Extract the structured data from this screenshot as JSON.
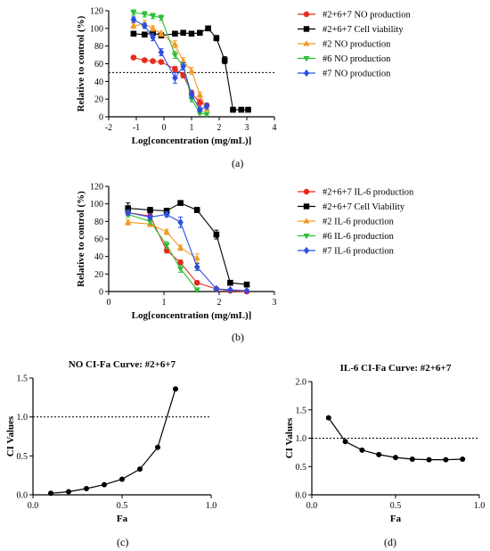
{
  "captions": [
    "(a)",
    "(b)",
    "(c)",
    "(d)"
  ],
  "chart_data": [
    {
      "type": "scatter",
      "panel": "a",
      "xlabel": "Log[concentration (mg/mL)]",
      "ylabel": "Relative to control (%)",
      "xlim": [
        -2,
        4
      ],
      "ylim": [
        0,
        120
      ],
      "xticks": [
        -2,
        -1,
        0,
        1,
        2,
        3,
        4
      ],
      "yticks": [
        0,
        20,
        40,
        60,
        80,
        100,
        120
      ],
      "reference_line": 50,
      "legend_position": "right",
      "series": [
        {
          "name": "#2+6+7 NO production",
          "color": "#e8291c",
          "marker": "circle",
          "x": [
            -1.1,
            -0.7,
            -0.4,
            -0.1,
            0.4,
            0.7,
            1.0,
            1.3,
            1.55
          ],
          "y": [
            67,
            64,
            63,
            62,
            54,
            47,
            27,
            16,
            13
          ],
          "err": [
            2,
            2,
            2,
            2,
            3,
            3,
            3,
            4,
            2
          ]
        },
        {
          "name": "#2+6+7 Cell viability",
          "color": "#000000",
          "marker": "square",
          "x": [
            -1.1,
            -0.7,
            -0.4,
            -0.1,
            0.4,
            0.7,
            1.0,
            1.3,
            1.6,
            1.9,
            2.2,
            2.5,
            2.8,
            3.05
          ],
          "y": [
            94,
            93,
            95,
            92,
            94,
            95,
            94,
            95,
            100,
            89,
            64,
            8,
            8,
            8
          ],
          "err": [
            2,
            2,
            2,
            2,
            2,
            2,
            2,
            2,
            2,
            3,
            4,
            1,
            1,
            1
          ]
        },
        {
          "name": "#2 NO production",
          "color": "#f39a24",
          "marker": "triangle-up",
          "x": [
            -1.1,
            -0.7,
            -0.4,
            -0.1,
            0.4,
            0.7,
            1.0,
            1.3,
            1.55
          ],
          "y": [
            103,
            105,
            100,
            94,
            82,
            63,
            52,
            25,
            9
          ],
          "err": [
            3,
            4,
            3,
            3,
            4,
            4,
            4,
            3,
            2
          ]
        },
        {
          "name": "#6 NO production",
          "color": "#2fbf35",
          "marker": "triangle-down",
          "x": [
            -1.1,
            -0.7,
            -0.4,
            -0.1,
            0.4,
            0.7,
            1.0,
            1.3,
            1.55
          ],
          "y": [
            118,
            116,
            114,
            112,
            70,
            57,
            20,
            4,
            3
          ],
          "err": [
            3,
            3,
            3,
            3,
            4,
            4,
            3,
            1,
            1
          ]
        },
        {
          "name": "#7 NO production",
          "color": "#2b4fe0",
          "marker": "diamond",
          "x": [
            -1.1,
            -0.7,
            -0.4,
            -0.1,
            0.4,
            0.7,
            1.0,
            1.3,
            1.55
          ],
          "y": [
            110,
            103,
            90,
            73,
            44,
            57,
            25,
            8,
            12
          ],
          "err": [
            3,
            3,
            4,
            4,
            6,
            4,
            4,
            2,
            3
          ]
        }
      ]
    },
    {
      "type": "scatter",
      "panel": "b",
      "xlabel": "Log[concentration (mg/mL)]",
      "ylabel": "Relative to control (%)",
      "xlim": [
        0,
        3
      ],
      "ylim": [
        0,
        120
      ],
      "xticks": [
        0,
        1,
        2,
        3
      ],
      "yticks": [
        0,
        20,
        40,
        60,
        80,
        100,
        120
      ],
      "legend_position": "right",
      "series": [
        {
          "name": "#2+6+7 IL-6 production",
          "color": "#e8291c",
          "marker": "circle",
          "x": [
            0.35,
            0.75,
            1.05,
            1.3,
            1.6,
            1.95,
            2.2,
            2.5
          ],
          "y": [
            90,
            86,
            47,
            33,
            10,
            3,
            1,
            0
          ],
          "err": [
            3,
            3,
            3,
            3,
            2,
            1,
            1,
            1
          ]
        },
        {
          "name": "#2+6+7 Cell Viability",
          "color": "#000000",
          "marker": "square",
          "x": [
            0.35,
            0.75,
            1.05,
            1.3,
            1.6,
            1.95,
            2.2,
            2.5
          ],
          "y": [
            95,
            93,
            92,
            101,
            93,
            65,
            10,
            8
          ],
          "err": [
            6,
            3,
            3,
            2,
            3,
            5,
            2,
            1
          ]
        },
        {
          "name": "#2 IL-6 production",
          "color": "#f39a24",
          "marker": "triangle-up",
          "x": [
            0.35,
            0.75,
            1.05,
            1.3,
            1.6
          ],
          "y": [
            79,
            77,
            68,
            50,
            38
          ],
          "err": [
            3,
            3,
            3,
            3,
            5
          ]
        },
        {
          "name": "#6 IL-6 production",
          "color": "#2fbf35",
          "marker": "triangle-down",
          "x": [
            0.35,
            0.75,
            1.05,
            1.3,
            1.6
          ],
          "y": [
            88,
            80,
            53,
            26,
            2
          ],
          "err": [
            3,
            3,
            4,
            4,
            1
          ]
        },
        {
          "name": "#7 IL-6 production",
          "color": "#2b4fe0",
          "marker": "diamond",
          "x": [
            0.35,
            0.75,
            1.05,
            1.3,
            1.6,
            1.95,
            2.2,
            2.5
          ],
          "y": [
            90,
            85,
            88,
            79,
            28,
            3,
            2,
            1
          ],
          "err": [
            3,
            3,
            3,
            6,
            4,
            1,
            1,
            1
          ]
        }
      ]
    },
    {
      "type": "line",
      "panel": "c",
      "title": "NO CI-Fa Curve: #2+6+7",
      "xlabel": "Fa",
      "ylabel": "CI Values",
      "xlim": [
        0,
        1
      ],
      "ylim": [
        0,
        1.5
      ],
      "xticks": [
        0.0,
        0.5,
        1.0
      ],
      "yticks": [
        0.0,
        0.5,
        1.0,
        1.5
      ],
      "reference_line": 1.0,
      "series": [
        {
          "name": "",
          "color": "#000000",
          "marker": "circle",
          "x": [
            0.1,
            0.2,
            0.3,
            0.4,
            0.5,
            0.6,
            0.7,
            0.8
          ],
          "y": [
            0.02,
            0.04,
            0.08,
            0.13,
            0.2,
            0.33,
            0.61,
            1.36
          ]
        }
      ]
    },
    {
      "type": "line",
      "panel": "d",
      "title": "IL-6 CI-Fa Curve: #2+6+7",
      "xlabel": "Fa",
      "ylabel": "CI Values",
      "xlim": [
        0,
        1
      ],
      "ylim": [
        0,
        2.0
      ],
      "xticks": [
        0.0,
        0.5,
        1.0
      ],
      "yticks": [
        0.0,
        0.5,
        1.0,
        1.5,
        2.0
      ],
      "reference_line": 1.0,
      "series": [
        {
          "name": "",
          "color": "#000000",
          "marker": "circle",
          "x": [
            0.1,
            0.2,
            0.3,
            0.4,
            0.5,
            0.6,
            0.7,
            0.8,
            0.9
          ],
          "y": [
            1.36,
            0.94,
            0.79,
            0.71,
            0.66,
            0.63,
            0.62,
            0.62,
            0.63
          ]
        }
      ]
    }
  ]
}
